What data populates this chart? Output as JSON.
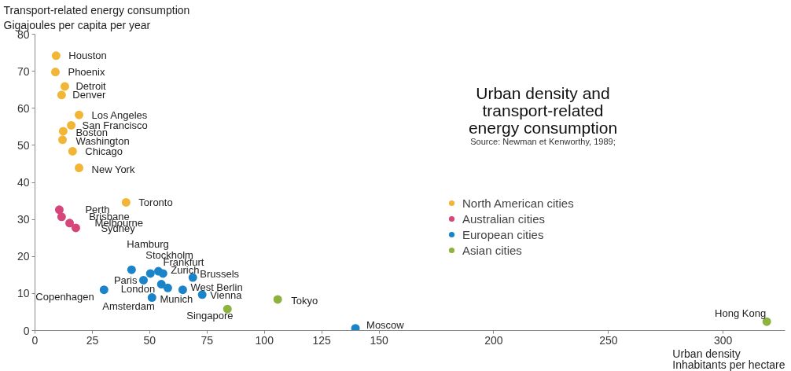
{
  "chart_data": {
    "type": "scatter",
    "title": "Urban density and\ntransport-related\nenergy consumption",
    "ylabel": "Transport-related energy consumption\nGigajoules per capita per year",
    "xlabel": "Urban density\nInhabitants per hectare",
    "xlim": [
      0,
      327
    ],
    "ylim": [
      0,
      80
    ],
    "xticks": [
      0,
      25,
      50,
      75,
      100,
      125,
      150,
      200,
      250,
      300
    ],
    "yticks": [
      0,
      10,
      20,
      30,
      40,
      50,
      60,
      70,
      80
    ],
    "grid": false,
    "legend": "right",
    "marker": "circle",
    "series": [
      {
        "name": "North American cities",
        "color": "#f2b636",
        "x": [
          9.2,
          8.9,
          13,
          11.6,
          19.2,
          15.8,
          12.3,
          12,
          16.4,
          19.2,
          39.7
        ],
        "values": [
          74.2,
          69.8,
          65.9,
          63.6,
          58.2,
          55.4,
          53.8,
          51.5,
          48.4,
          43.9,
          34.6
        ]
      },
      {
        "name": "Australian cities",
        "color": "#d6467a",
        "x": [
          10.6,
          11.6,
          15.1,
          17.8
        ],
        "values": [
          32.6,
          30.7,
          29,
          27.7
        ]
      },
      {
        "name": "European cities",
        "color": "#1b84c8",
        "x": [
          42.1,
          50.3,
          53.8,
          55.8,
          68.8,
          47.3,
          55.1,
          57.9,
          64.4,
          72.9,
          30.1,
          51,
          139.7
        ],
        "values": [
          16.4,
          15.4,
          16,
          15.4,
          14.3,
          13.6,
          12.5,
          11.5,
          11,
          9.7,
          11,
          8.9,
          0.6
        ]
      },
      {
        "name": "Asian cities",
        "color": "#8db33e",
        "x": [
          83.9,
          105.8,
          319
        ],
        "values": [
          5.8,
          8.4,
          2.4
        ]
      }
    ],
    "annotations": [
      "Source: Newman et Kenworthy, 1989;",
      {
        "text": "Houston",
        "x": 9.2,
        "y": 74.2
      },
      {
        "text": "Phoenix",
        "x": 8.9,
        "y": 69.8
      },
      {
        "text": "Detroit",
        "x": 13,
        "y": 65.9
      },
      {
        "text": "Denver",
        "x": 11.6,
        "y": 63.6
      },
      {
        "text": "Los Angeles",
        "x": 19.2,
        "y": 58.2
      },
      {
        "text": "San Francisco",
        "x": 15.8,
        "y": 55.4
      },
      {
        "text": "Boston",
        "x": 12.3,
        "y": 53.8
      },
      {
        "text": "Washington",
        "x": 12,
        "y": 51.5
      },
      {
        "text": "Chicago",
        "x": 16.4,
        "y": 48.4
      },
      {
        "text": "New York",
        "x": 19.2,
        "y": 43.9
      },
      {
        "text": "Toronto",
        "x": 39.7,
        "y": 34.6
      },
      {
        "text": "Perth",
        "x": 10.6,
        "y": 32.6
      },
      {
        "text": "Brisbane",
        "x": 11.6,
        "y": 30.7
      },
      {
        "text": "Melbourne",
        "x": 15.1,
        "y": 29
      },
      {
        "text": "Sydney",
        "x": 17.8,
        "y": 27.7
      },
      {
        "text": "Hamburg",
        "x": 42.1,
        "y": 16.4
      },
      {
        "text": "Stockholm",
        "x": 50.3,
        "y": 15.4
      },
      {
        "text": "Frankfurt",
        "x": 53.8,
        "y": 16
      },
      {
        "text": "Zurich",
        "x": 55.8,
        "y": 15.4
      },
      {
        "text": "Brussels",
        "x": 68.8,
        "y": 14.3
      },
      {
        "text": "Paris",
        "x": 47.3,
        "y": 13.6
      },
      {
        "text": "London",
        "x": 55.1,
        "y": 12.5
      },
      {
        "text": "Munich",
        "x": 57.9,
        "y": 11.5
      },
      {
        "text": "West Berlin",
        "x": 64.4,
        "y": 11
      },
      {
        "text": "Vienna",
        "x": 72.9,
        "y": 9.7
      },
      {
        "text": "Copenhagen",
        "x": 30.1,
        "y": 11
      },
      {
        "text": "Amsterdam",
        "x": 51,
        "y": 8.9
      },
      {
        "text": "Moscow",
        "x": 139.7,
        "y": 0.6
      },
      {
        "text": "Singapore",
        "x": 83.9,
        "y": 5.8
      },
      {
        "text": "Tokyo",
        "x": 105.8,
        "y": 8.4
      },
      {
        "text": "Hong Kong",
        "x": 319,
        "y": 2.4
      }
    ]
  }
}
